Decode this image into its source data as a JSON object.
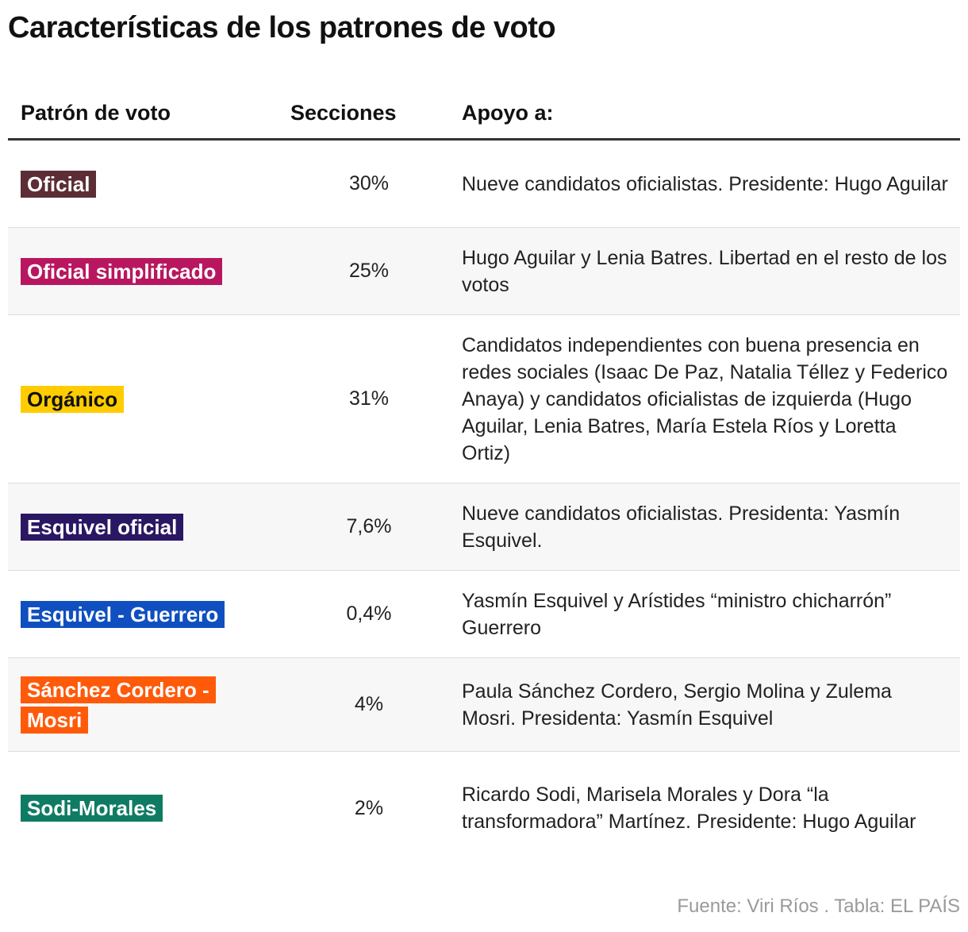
{
  "title": "Características de los patrones de voto",
  "columns": {
    "patron": "Patrón de voto",
    "secciones": "Secciones",
    "apoyo": "Apoyo a:"
  },
  "rows": [
    {
      "label": "Oficial",
      "color": "#5c2d35",
      "secciones": "30%",
      "apoyo": "Nueve candidatos oficialistas. Presidente: Hugo Aguilar"
    },
    {
      "label": "Oficial simplificado",
      "color": "#b8175f",
      "secciones": "25%",
      "apoyo": "Hugo Aguilar y Lenia Batres. Libertad en el resto de los votos"
    },
    {
      "label": "Orgánico",
      "color": "#ffcc00",
      "secciones": "31%",
      "apoyo": "Candidatos independientes con buena presencia en redes sociales (Isaac De Paz, Natalia Téllez y Federico Anaya) y candidatos oficialistas de izquierda (Hugo Aguilar, Lenia Batres, María Estela Ríos y Loretta Ortiz)"
    },
    {
      "label": "Esquivel oficial",
      "color": "#2a1763",
      "secciones": "7,6%",
      "apoyo": "Nueve candidatos oficialistas. Presidenta: Yasmín Esquivel."
    },
    {
      "label": "Esquivel - Guerrero",
      "color": "#0f4fc0",
      "secciones": "0,4%",
      "apoyo": "Yasmín Esquivel y Arístides “ministro chicharrón” Guerrero"
    },
    {
      "label": "Sánchez Cordero - Mosri",
      "color": "#ff5a0a",
      "secciones": "4%",
      "apoyo": "Paula Sánchez Cordero, Sergio Molina y Zulema Mosri. Presidenta: Yasmín Esquivel"
    },
    {
      "label": "Sodi-Morales",
      "color": "#0f7b62",
      "secciones": "2%",
      "apoyo": "Ricardo Sodi, Marisela Morales y Dora “la transformadora” Martínez. Presidente: Hugo Aguilar"
    }
  ],
  "source": "Fuente: Viri Ríos . Tabla: EL PAÍS"
}
